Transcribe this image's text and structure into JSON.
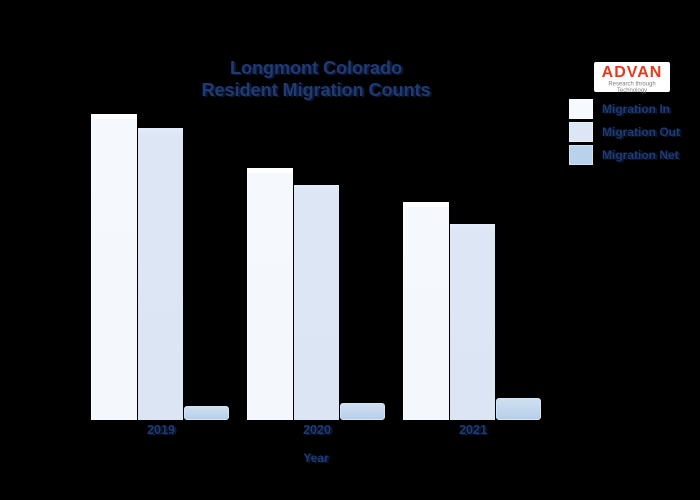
{
  "title": {
    "line1": "Longmont Colorado",
    "line2": "Resident Migration Counts"
  },
  "logo": {
    "name": "ADVAN",
    "tagline": "Research through Technology",
    "brand_color": "#e8391d"
  },
  "legend": {
    "items": [
      {
        "label": "Migration In",
        "color": "#f6f9fd"
      },
      {
        "label": "Migration Out",
        "color": "#dce6f5"
      },
      {
        "label": "Migration Net",
        "color": "#b9d2ec"
      }
    ]
  },
  "x_axis": {
    "label": "Year",
    "ticks": [
      "2019",
      "2020",
      "2021"
    ]
  },
  "colors": {
    "background": "#000000",
    "text_navy": "#203a72"
  },
  "chart_data": {
    "type": "bar",
    "title": "Longmont Colorado Resident Migration Counts",
    "categories": [
      "2019",
      "2020",
      "2021"
    ],
    "series": [
      {
        "name": "Migration In",
        "color": "#f6f9fd",
        "values": [
          100.0,
          82.4,
          71.2
        ]
      },
      {
        "name": "Migration Out",
        "color": "#dce6f5",
        "values": [
          95.4,
          76.8,
          64.1
        ]
      },
      {
        "name": "Migration Net",
        "color": "#b9d2ec",
        "values": [
          4.6,
          5.6,
          7.1
        ]
      }
    ],
    "xlabel": "Year",
    "ylabel": "",
    "ylim": [
      0,
      105
    ],
    "units": "relative counts (no y-axis shown; normalized to tallest bar = 100)",
    "y_axis_visible": false,
    "grid": false,
    "legend_position": "top-right",
    "background": "#000000"
  }
}
